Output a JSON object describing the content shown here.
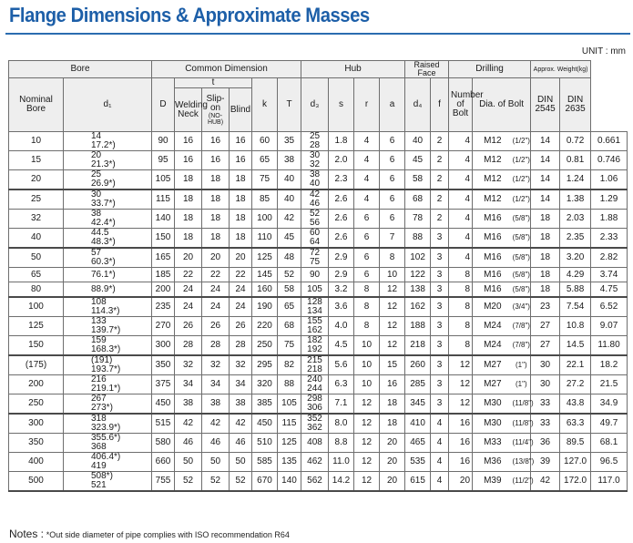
{
  "title": "Flange Dimensions & Approximate Masses",
  "unit": "UNIT : mm",
  "header": {
    "bore": "Bore",
    "common": "Common Dimension",
    "hub": "Hub",
    "raised_face": "Raised Face",
    "drilling": "Drilling",
    "weight": "Approx. Weight(kg)",
    "nominal_bore": "Nominal Bore",
    "d1": "d₁",
    "D": "D",
    "t": "t",
    "welding_neck": "Welding Neck",
    "slip_on": "Slip-on",
    "no_hub": "(NO-HUB)",
    "blind": "Blind",
    "k": "k",
    "T": "T",
    "d3": "d₃",
    "s": "s",
    "r": "r",
    "a": "a",
    "d4": "d₄",
    "f": "f",
    "num_bolt": "Number of Bolt",
    "dia_bolt": "Dia. of Bolt",
    "d2": "d₂",
    "din2545": "DIN 2545",
    "din2635": "DIN 2635"
  },
  "rows": [
    {
      "nb": "10",
      "d1": [
        "14",
        "17.2*)"
      ],
      "D": "90",
      "wn": "16",
      "so": "16",
      "bl": "16",
      "k": "60",
      "T": "35",
      "d3": [
        "25",
        "28"
      ],
      "s": "1.8",
      "r": "4",
      "a": "6",
      "d4": "40",
      "f": "2",
      "n": "4",
      "bolt": "M12",
      "inch": "(1/2\")",
      "d2": "14",
      "w1": "0.72",
      "w2": "0.661"
    },
    {
      "nb": "15",
      "d1": [
        "20",
        "21.3*)"
      ],
      "D": "95",
      "wn": "16",
      "so": "16",
      "bl": "16",
      "k": "65",
      "T": "38",
      "d3": [
        "30",
        "32"
      ],
      "s": "2.0",
      "r": "4",
      "a": "6",
      "d4": "45",
      "f": "2",
      "n": "4",
      "bolt": "M12",
      "inch": "(1/2\")",
      "d2": "14",
      "w1": "0.81",
      "w2": "0.746"
    },
    {
      "nb": "20",
      "d1": [
        "25",
        "26.9*)"
      ],
      "D": "105",
      "wn": "18",
      "so": "18",
      "bl": "18",
      "k": "75",
      "T": "40",
      "d3": [
        "38",
        "40"
      ],
      "s": "2.3",
      "r": "4",
      "a": "6",
      "d4": "58",
      "f": "2",
      "n": "4",
      "bolt": "M12",
      "inch": "(1/2\")",
      "d2": "14",
      "w1": "1.24",
      "w2": "1.06"
    },
    {
      "nb": "25",
      "d1": [
        "30",
        "33.7*)"
      ],
      "D": "115",
      "wn": "18",
      "so": "18",
      "bl": "18",
      "k": "85",
      "T": "40",
      "d3": [
        "42",
        "46"
      ],
      "s": "2.6",
      "r": "4",
      "a": "6",
      "d4": "68",
      "f": "2",
      "n": "4",
      "bolt": "M12",
      "inch": "(1/2\")",
      "d2": "14",
      "w1": "1.38",
      "w2": "1.29"
    },
    {
      "nb": "32",
      "d1": [
        "38",
        "42.4*)"
      ],
      "D": "140",
      "wn": "18",
      "so": "18",
      "bl": "18",
      "k": "100",
      "T": "42",
      "d3": [
        "52",
        "56"
      ],
      "s": "2.6",
      "r": "6",
      "a": "6",
      "d4": "78",
      "f": "2",
      "n": "4",
      "bolt": "M16",
      "inch": "(5/8\")",
      "d2": "18",
      "w1": "2.03",
      "w2": "1.88"
    },
    {
      "nb": "40",
      "d1": [
        "44.5",
        "48.3*)"
      ],
      "D": "150",
      "wn": "18",
      "so": "18",
      "bl": "18",
      "k": "110",
      "T": "45",
      "d3": [
        "60",
        "64"
      ],
      "s": "2.6",
      "r": "6",
      "a": "7",
      "d4": "88",
      "f": "3",
      "n": "4",
      "bolt": "M16",
      "inch": "(5/8\")",
      "d2": "18",
      "w1": "2.35",
      "w2": "2.33"
    },
    {
      "nb": "50",
      "d1": [
        "57",
        "60.3*)"
      ],
      "D": "165",
      "wn": "20",
      "so": "20",
      "bl": "20",
      "k": "125",
      "T": "48",
      "d3": [
        "72",
        "75"
      ],
      "s": "2.9",
      "r": "6",
      "a": "8",
      "d4": "102",
      "f": "3",
      "n": "4",
      "bolt": "M16",
      "inch": "(5/8\")",
      "d2": "18",
      "w1": "3.20",
      "w2": "2.82"
    },
    {
      "nb": "65",
      "d1": [
        "",
        "76.1*)"
      ],
      "D": "185",
      "wn": "22",
      "so": "22",
      "bl": "22",
      "k": "145",
      "T": "52",
      "d3": [
        "",
        "90"
      ],
      "s": "2.9",
      "r": "6",
      "a": "10",
      "d4": "122",
      "f": "3",
      "n": "8",
      "bolt": "M16",
      "inch": "(5/8\")",
      "d2": "18",
      "w1": "4.29",
      "w2": "3.74"
    },
    {
      "nb": "80",
      "d1": [
        "",
        "88.9*)"
      ],
      "D": "200",
      "wn": "24",
      "so": "24",
      "bl": "24",
      "k": "160",
      "T": "58",
      "d3": [
        "",
        "105"
      ],
      "s": "3.2",
      "r": "8",
      "a": "12",
      "d4": "138",
      "f": "3",
      "n": "8",
      "bolt": "M16",
      "inch": "(5/8\")",
      "d2": "18",
      "w1": "5.88",
      "w2": "4.75"
    },
    {
      "nb": "100",
      "d1": [
        "108",
        "114.3*)"
      ],
      "D": "235",
      "wn": "24",
      "so": "24",
      "bl": "24",
      "k": "190",
      "T": "65",
      "d3": [
        "128",
        "134"
      ],
      "s": "3.6",
      "r": "8",
      "a": "12",
      "d4": "162",
      "f": "3",
      "n": "8",
      "bolt": "M20",
      "inch": "(3/4\")",
      "d2": "23",
      "w1": "7.54",
      "w2": "6.52"
    },
    {
      "nb": "125",
      "d1": [
        "133",
        "139.7*)"
      ],
      "D": "270",
      "wn": "26",
      "so": "26",
      "bl": "26",
      "k": "220",
      "T": "68",
      "d3": [
        "155",
        "162"
      ],
      "s": "4.0",
      "r": "8",
      "a": "12",
      "d4": "188",
      "f": "3",
      "n": "8",
      "bolt": "M24",
      "inch": "(7/8\")",
      "d2": "27",
      "w1": "10.8",
      "w2": "9.07"
    },
    {
      "nb": "150",
      "d1": [
        "159",
        "168.3*)"
      ],
      "D": "300",
      "wn": "28",
      "so": "28",
      "bl": "28",
      "k": "250",
      "T": "75",
      "d3": [
        "182",
        "192"
      ],
      "s": "4.5",
      "r": "10",
      "a": "12",
      "d4": "218",
      "f": "3",
      "n": "8",
      "bolt": "M24",
      "inch": "(7/8\")",
      "d2": "27",
      "w1": "14.5",
      "w2": "11.80"
    },
    {
      "nb": "(175)",
      "d1": [
        "(191)",
        "193.7*)"
      ],
      "D": "350",
      "wn": "32",
      "so": "32",
      "bl": "32",
      "k": "295",
      "T": "82",
      "d3": [
        "215",
        "218"
      ],
      "s": "5.6",
      "r": "10",
      "a": "15",
      "d4": "260",
      "f": "3",
      "n": "12",
      "bolt": "M27",
      "inch": "(1\")",
      "d2": "30",
      "w1": "22.1",
      "w2": "18.2"
    },
    {
      "nb": "200",
      "d1": [
        "216",
        "219.1*)"
      ],
      "D": "375",
      "wn": "34",
      "so": "34",
      "bl": "34",
      "k": "320",
      "T": "88",
      "d3": [
        "240",
        "244"
      ],
      "s": "6.3",
      "r": "10",
      "a": "16",
      "d4": "285",
      "f": "3",
      "n": "12",
      "bolt": "M27",
      "inch": "(1\")",
      "d2": "30",
      "w1": "27.2",
      "w2": "21.5"
    },
    {
      "nb": "250",
      "d1": [
        "267",
        "273*)"
      ],
      "D": "450",
      "wn": "38",
      "so": "38",
      "bl": "38",
      "k": "385",
      "T": "105",
      "d3": [
        "298",
        "306"
      ],
      "s": "7.1",
      "r": "12",
      "a": "18",
      "d4": "345",
      "f": "3",
      "n": "12",
      "bolt": "M30",
      "inch": "(11/8\")",
      "d2": "33",
      "w1": "43.8",
      "w2": "34.9"
    },
    {
      "nb": "300",
      "d1": [
        "318",
        "323.9*)"
      ],
      "D": "515",
      "wn": "42",
      "so": "42",
      "bl": "42",
      "k": "450",
      "T": "115",
      "d3": [
        "352",
        "362"
      ],
      "s": "8.0",
      "r": "12",
      "a": "18",
      "d4": "410",
      "f": "4",
      "n": "16",
      "bolt": "M30",
      "inch": "(11/8\")",
      "d2": "33",
      "w1": "63.3",
      "w2": "49.7"
    },
    {
      "nb": "350",
      "d1": [
        "355.6*)",
        "368"
      ],
      "D": "580",
      "wn": "46",
      "so": "46",
      "bl": "46",
      "k": "510",
      "T": "125",
      "d3": [
        "",
        "408"
      ],
      "s": "8.8",
      "r": "12",
      "a": "20",
      "d4": "465",
      "f": "4",
      "n": "16",
      "bolt": "M33",
      "inch": "(11/4\")",
      "d2": "36",
      "w1": "89.5",
      "w2": "68.1"
    },
    {
      "nb": "400",
      "d1": [
        "406.4*)",
        "419"
      ],
      "D": "660",
      "wn": "50",
      "so": "50",
      "bl": "50",
      "k": "585",
      "T": "135",
      "d3": [
        "",
        "462"
      ],
      "s": "11.0",
      "r": "12",
      "a": "20",
      "d4": "535",
      "f": "4",
      "n": "16",
      "bolt": "M36",
      "inch": "(13/8\")",
      "d2": "39",
      "w1": "127.0",
      "w2": "96.5"
    },
    {
      "nb": "500",
      "d1": [
        "508*)",
        "521"
      ],
      "D": "755",
      "wn": "52",
      "so": "52",
      "bl": "52",
      "k": "670",
      "T": "140",
      "d3": [
        "",
        "562"
      ],
      "s": "14.2",
      "r": "12",
      "a": "20",
      "d4": "615",
      "f": "4",
      "n": "20",
      "bolt": "M39",
      "inch": "(11/2\")",
      "d2": "42",
      "w1": "172.0",
      "w2": "117.0"
    }
  ],
  "notes_label": "Notes :",
  "notes_text": "*Out side diameter of pipe complies with ISO recommendation R64"
}
